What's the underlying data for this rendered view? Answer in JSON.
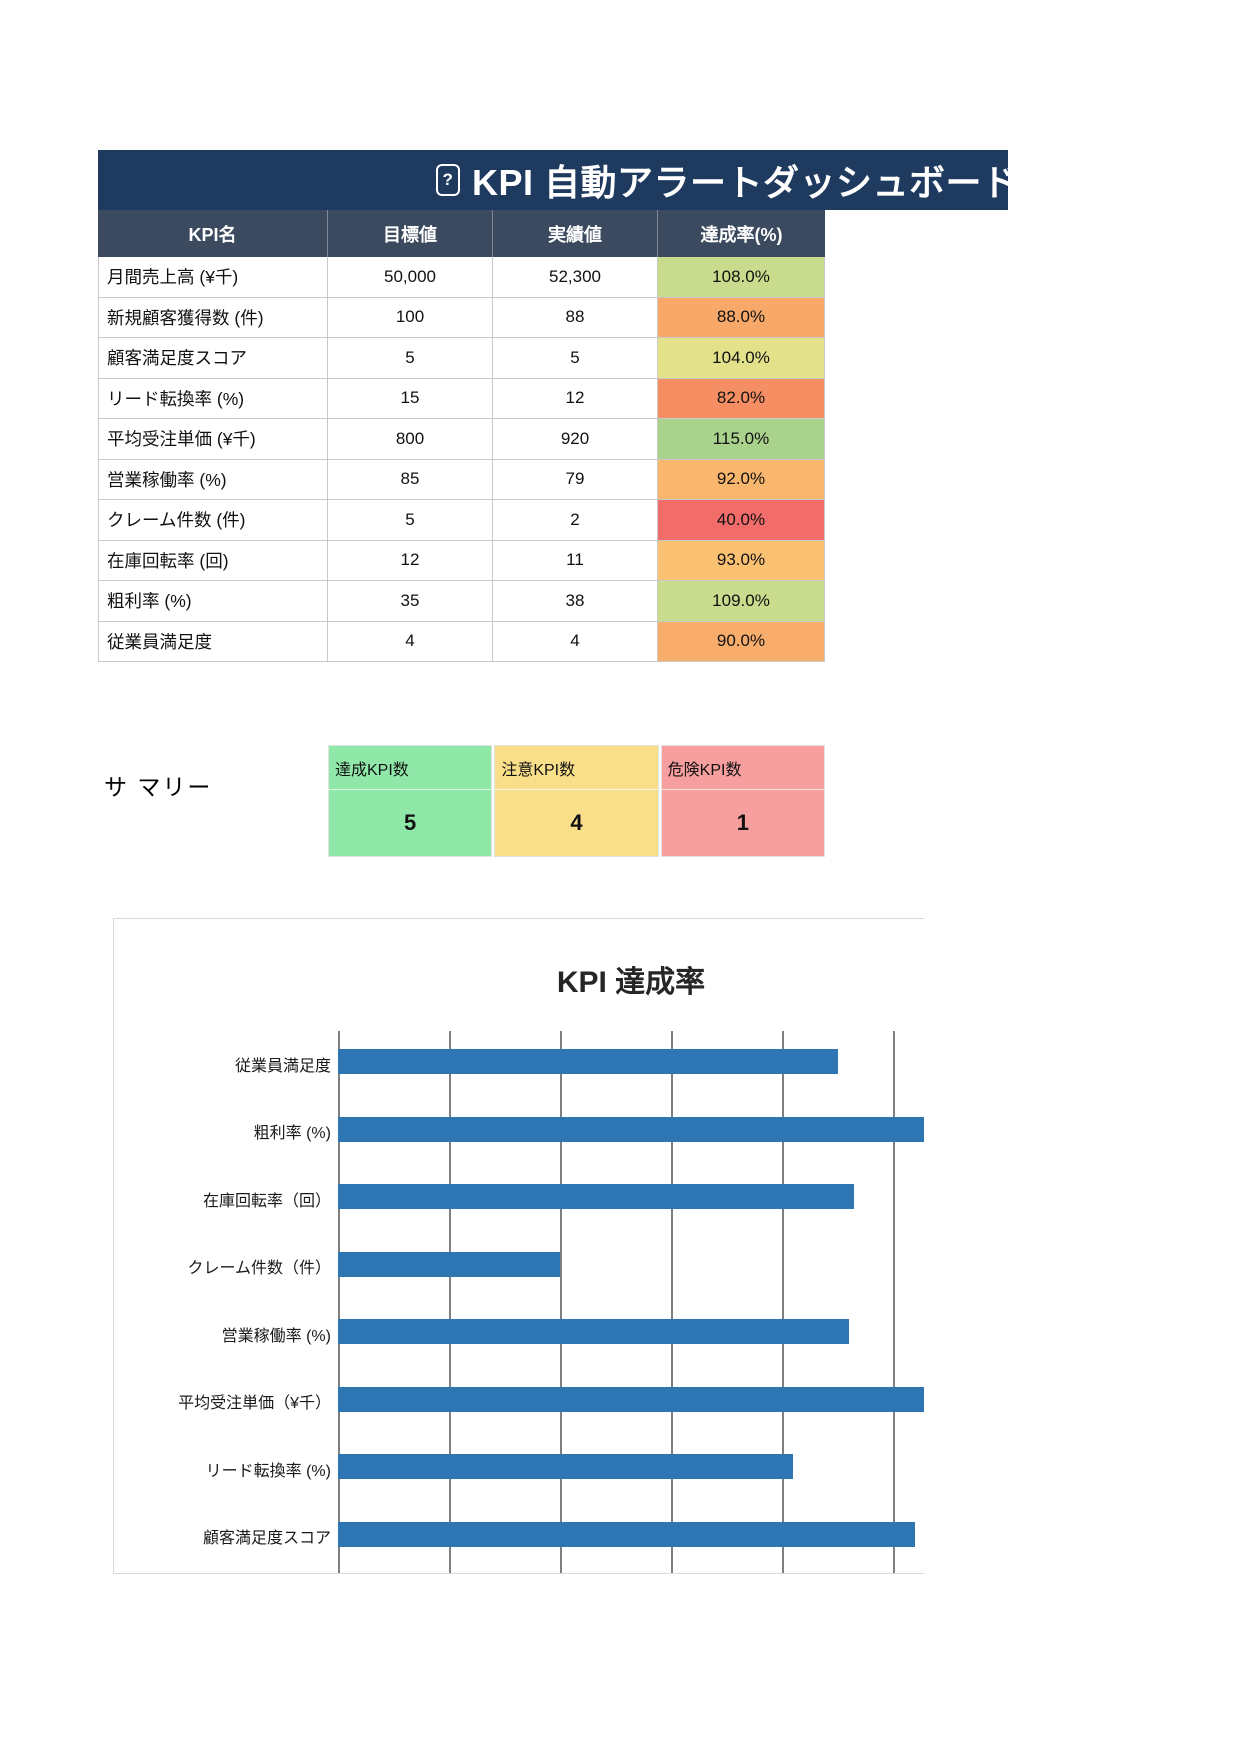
{
  "banner": {
    "icon": "missing-glyph-box",
    "icon_char": "?",
    "title": "KPI 自動アラートダッシュボード"
  },
  "table": {
    "headers": [
      "KPI名",
      "目標値",
      "実績値",
      "達成率(%)"
    ],
    "rows": [
      {
        "kpi": "月間売上高 (¥千)",
        "target": "50,000",
        "actual": "52,300",
        "rate": "108.0%",
        "rate_color": "#c9db8c"
      },
      {
        "kpi": "新規顧客獲得数 (件)",
        "target": "100",
        "actual": "88",
        "rate": "88.0%",
        "rate_color": "#f8a96a"
      },
      {
        "kpi": "顧客満足度スコア",
        "target": "5",
        "actual": "5",
        "rate": "104.0%",
        "rate_color": "#e3e28a"
      },
      {
        "kpi": "リード転換率 (%)",
        "target": "15",
        "actual": "12",
        "rate": "82.0%",
        "rate_color": "#f58f63"
      },
      {
        "kpi": "平均受注単価 (¥千)",
        "target": "800",
        "actual": "920",
        "rate": "115.0%",
        "rate_color": "#a9d28c"
      },
      {
        "kpi": "営業稼働率 (%)",
        "target": "85",
        "actual": "79",
        "rate": "92.0%",
        "rate_color": "#f9b76e"
      },
      {
        "kpi": "クレーム件数 (件)",
        "target": "5",
        "actual": "2",
        "rate": "40.0%",
        "rate_color": "#f26c6a"
      },
      {
        "kpi": "在庫回転率 (回)",
        "target": "12",
        "actual": "11",
        "rate": "93.0%",
        "rate_color": "#fac173"
      },
      {
        "kpi": "粗利率 (%)",
        "target": "35",
        "actual": "38",
        "rate": "109.0%",
        "rate_color": "#c9db8c"
      },
      {
        "kpi": "従業員満足度",
        "target": "4",
        "actual": "4",
        "rate": "90.0%",
        "rate_color": "#f8ad6c"
      }
    ]
  },
  "summary": {
    "label": "サ マリー",
    "cards": [
      {
        "label": "達成KPI数",
        "value": "5",
        "color": "#8fe8a8"
      },
      {
        "label": "注意KPI数",
        "value": "4",
        "color": "#fadf8b"
      },
      {
        "label": "危険KPI数",
        "value": "1",
        "color": "#f79e9e"
      }
    ]
  },
  "chart_data": {
    "type": "bar",
    "orientation": "horizontal",
    "title": "KPI 達成率",
    "categories": [
      "従業員満足度",
      "粗利率 (%)",
      "在庫回転率（回）",
      "クレーム件数（件）",
      "営業稼働率 (%)",
      "平均受注単価（¥千）",
      "リード転換率 (%)",
      "顧客満足度スコア"
    ],
    "values": [
      90,
      109,
      93,
      40,
      92,
      115,
      82,
      104
    ],
    "xlabel": "",
    "ylabel": "",
    "xlim": [
      0,
      140
    ],
    "gridline_interval": 20,
    "grid": true,
    "legend": false,
    "bar_color": "#2e75b4",
    "grid_color": "#7f7f7f"
  },
  "colors": {
    "banner_bg": "#1f3a5f",
    "table_header_bg": "#3b4a5e",
    "page_bg": "#ffffff"
  }
}
